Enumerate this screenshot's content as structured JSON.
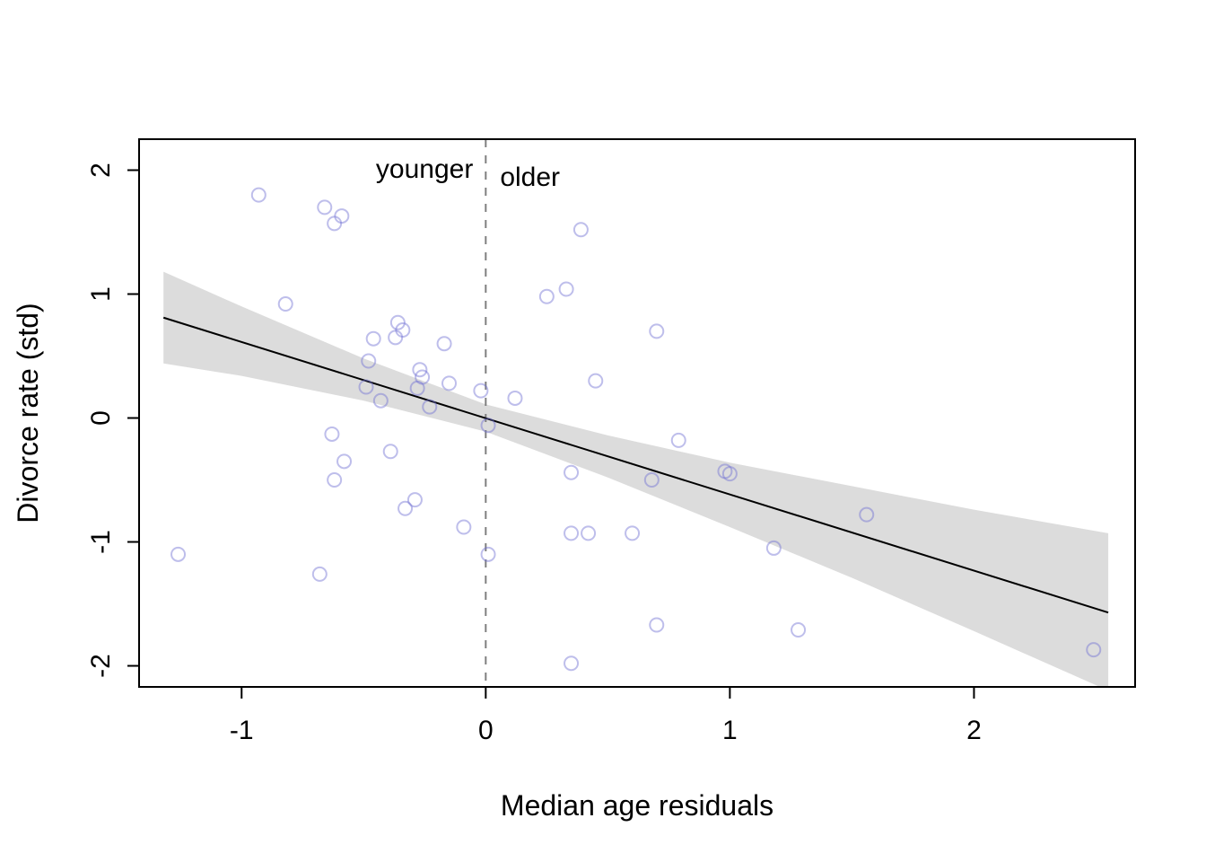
{
  "chart_data": {
    "type": "scatter",
    "title": "",
    "xlabel": "Median age residuals",
    "ylabel": "Divorce rate (std)",
    "xlim": [
      -1.42,
      2.66
    ],
    "ylim": [
      -2.17,
      2.25
    ],
    "xticks": [
      -1,
      0,
      1,
      2
    ],
    "yticks": [
      -2,
      -1,
      0,
      1,
      2
    ],
    "grid": false,
    "legend": "none",
    "point_color": "rgba(110,110,210,0.45)",
    "band_color": "#dcdcdc",
    "line_color": "#000000",
    "vline_color": "#7f7f7f",
    "points": [
      [
        -0.93,
        1.8
      ],
      [
        -0.66,
        1.7
      ],
      [
        -0.59,
        1.63
      ],
      [
        -0.62,
        1.57
      ],
      [
        0.39,
        1.52
      ],
      [
        0.33,
        1.04
      ],
      [
        0.25,
        0.98
      ],
      [
        -0.82,
        0.92
      ],
      [
        -0.36,
        0.77
      ],
      [
        -0.34,
        0.71
      ],
      [
        -0.37,
        0.65
      ],
      [
        -0.46,
        0.64
      ],
      [
        0.7,
        0.7
      ],
      [
        -0.17,
        0.6
      ],
      [
        -0.48,
        0.46
      ],
      [
        -0.27,
        0.39
      ],
      [
        -0.26,
        0.33
      ],
      [
        0.45,
        0.3
      ],
      [
        -0.49,
        0.25
      ],
      [
        -0.28,
        0.24
      ],
      [
        -0.15,
        0.28
      ],
      [
        -0.02,
        0.22
      ],
      [
        -0.43,
        0.14
      ],
      [
        0.12,
        0.16
      ],
      [
        -0.23,
        0.09
      ],
      [
        0.01,
        -0.06
      ],
      [
        -0.63,
        -0.13
      ],
      [
        0.79,
        -0.18
      ],
      [
        -0.39,
        -0.27
      ],
      [
        -0.58,
        -0.35
      ],
      [
        0.35,
        -0.44
      ],
      [
        0.98,
        -0.43
      ],
      [
        1.0,
        -0.45
      ],
      [
        -0.62,
        -0.5
      ],
      [
        0.68,
        -0.5
      ],
      [
        -0.29,
        -0.66
      ],
      [
        1.56,
        -0.78
      ],
      [
        -0.33,
        -0.73
      ],
      [
        -0.09,
        -0.88
      ],
      [
        0.35,
        -0.93
      ],
      [
        0.42,
        -0.93
      ],
      [
        0.6,
        -0.93
      ],
      [
        1.18,
        -1.05
      ],
      [
        0.01,
        -1.1
      ],
      [
        -1.26,
        -1.1
      ],
      [
        -0.68,
        -1.26
      ],
      [
        0.7,
        -1.67
      ],
      [
        1.28,
        -1.71
      ],
      [
        0.35,
        -1.98
      ],
      [
        2.49,
        -1.87
      ]
    ],
    "regression_line": {
      "x": [
        -1.32,
        2.55
      ],
      "y": [
        0.81,
        -1.57
      ]
    },
    "confidence_band": {
      "x": [
        -1.32,
        -1.0,
        -0.5,
        0.0,
        0.5,
        1.0,
        1.5,
        2.0,
        2.55
      ],
      "upper": [
        1.18,
        0.9,
        0.48,
        0.11,
        -0.14,
        -0.36,
        -0.55,
        -0.74,
        -0.93
      ],
      "lower": [
        0.44,
        0.34,
        0.14,
        -0.11,
        -0.48,
        -0.88,
        -1.29,
        -1.72,
        -2.2
      ]
    },
    "vline": {
      "x": 0,
      "style": "dashed",
      "label_left": "younger",
      "label_right": "older",
      "label_y": 2.0
    }
  }
}
